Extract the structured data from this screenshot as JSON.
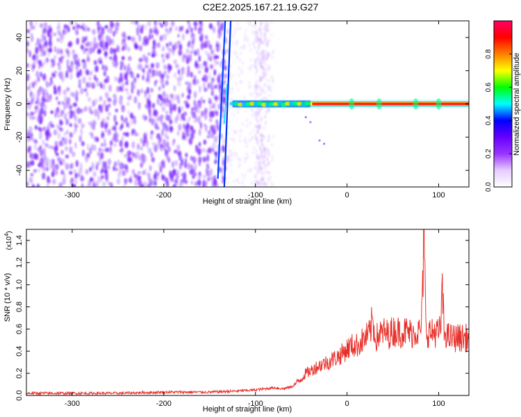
{
  "title": "C2E2.2025.167.21.19.G27",
  "chart_data": [
    {
      "type": "heatmap",
      "name": "spectrogram",
      "xlabel": "Height of straight line (km)",
      "ylabel": "Frequency (Hz)",
      "xlim": [
        -350,
        133
      ],
      "ylim": [
        -50,
        50
      ],
      "x_ticks": [
        -300,
        -200,
        -100,
        0,
        100
      ],
      "y_ticks": [
        -40,
        -20,
        0,
        20,
        40
      ],
      "colorbar": {
        "label": "Normalized spectral amplitude",
        "range": [
          0,
          1
        ],
        "ticks": [
          "0.0",
          "0.2",
          "0.4",
          "0.6",
          "0.8"
        ],
        "colors": [
          "#ffffff",
          "#e6ccff",
          "#9933ff",
          "#6600ff",
          "#0000ff",
          "#00ffff",
          "#00ff00",
          "#ffff00",
          "#ff8000",
          "#ff0000",
          "#ff0066"
        ]
      },
      "features": {
        "noise_region_x": [
          -350,
          -130
        ],
        "transient_streaks_x": [
          -141,
          -130
        ],
        "faint_band_x": [
          -100,
          -85
        ],
        "signal_line_frequency_hz": 0,
        "signal_onset_x": -130,
        "peak_bursts_x": [
          5,
          35,
          75,
          100
        ]
      }
    },
    {
      "type": "line",
      "name": "snr",
      "xlabel": "Height of straight line (km)",
      "ylabel": "SNR (10 * v/v)",
      "yscale_label": "(x10",
      "yscale_exp": "4",
      "xlim": [
        -350,
        133
      ],
      "ylim": [
        0,
        1.5
      ],
      "x_ticks": [
        -300,
        -200,
        -100,
        0,
        100
      ],
      "y_ticks": [
        "0.0",
        "0.2",
        "0.4",
        "0.6",
        "0.8",
        "1.0",
        "1.2",
        "1.4"
      ],
      "series": [
        {
          "color": "#e8302a",
          "x": [
            -350,
            -300,
            -250,
            -200,
            -150,
            -120,
            -100,
            -90,
            -80,
            -70,
            -60,
            -50,
            -45,
            -40,
            -35,
            -30,
            -25,
            -20,
            -15,
            -10,
            -5,
            0,
            5,
            10,
            15,
            20,
            25,
            28,
            30,
            32,
            35,
            40,
            45,
            50,
            55,
            60,
            65,
            70,
            75,
            80,
            82,
            84,
            86,
            88,
            90,
            92,
            95,
            100,
            102,
            104,
            106,
            108,
            110,
            115,
            120,
            125,
            133
          ],
          "y": [
            0.02,
            0.02,
            0.02,
            0.03,
            0.03,
            0.04,
            0.05,
            0.06,
            0.07,
            0.06,
            0.08,
            0.15,
            0.2,
            0.22,
            0.25,
            0.27,
            0.29,
            0.3,
            0.33,
            0.35,
            0.38,
            0.42,
            0.45,
            0.45,
            0.48,
            0.52,
            0.56,
            0.7,
            0.55,
            0.52,
            0.55,
            0.57,
            0.55,
            0.58,
            0.58,
            0.57,
            0.58,
            0.56,
            0.58,
            0.57,
            0.75,
            1.48,
            0.6,
            0.57,
            0.58,
            0.55,
            0.58,
            0.56,
            0.6,
            0.95,
            0.55,
            0.57,
            0.53,
            0.52,
            0.52,
            0.52,
            0.52
          ]
        }
      ]
    }
  ]
}
